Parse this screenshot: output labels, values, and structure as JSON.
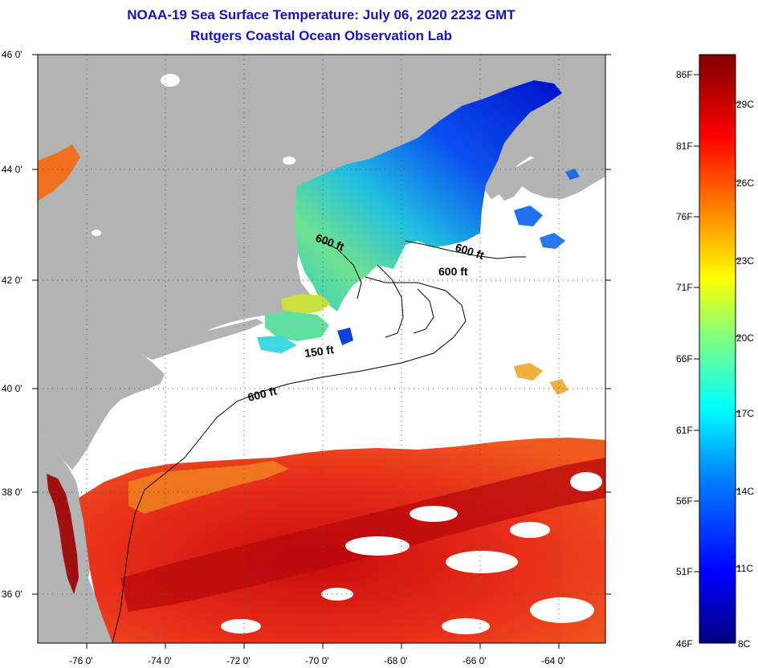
{
  "title": {
    "line1": "NOAA-19 Sea Surface Temperature:  July 06, 2020 2232 GMT",
    "line2": "Rutgers Coastal Ocean Observation Lab"
  },
  "map": {
    "lat_labels": [
      "46 0'",
      "44 0'",
      "42 0'",
      "40 0'",
      "38 0'",
      "36 0'"
    ],
    "lon_labels": [
      "-76 0'",
      "-74 0'",
      "-72 0'",
      "-70 0'",
      "-68 0'",
      "-66 0'",
      "-64 0'"
    ],
    "depth_labels": [
      "600 ft",
      "600 ft",
      "600 ft",
      "150 ft",
      "600 ft"
    ]
  },
  "colorbar": {
    "f_labels": [
      "86F",
      "81F",
      "76F",
      "71F",
      "66F",
      "61F",
      "56F",
      "51F",
      "46F"
    ],
    "c_labels": [
      "29C",
      "26C",
      "23C",
      "20C",
      "17C",
      "14C",
      "11C",
      "8C"
    ]
  },
  "colors": {
    "land": "#b3b3b3",
    "cloud": "#ffffff",
    "title": "#1414b4",
    "cold": "#00008b",
    "warm": "#e02010",
    "hot": "#800000"
  }
}
